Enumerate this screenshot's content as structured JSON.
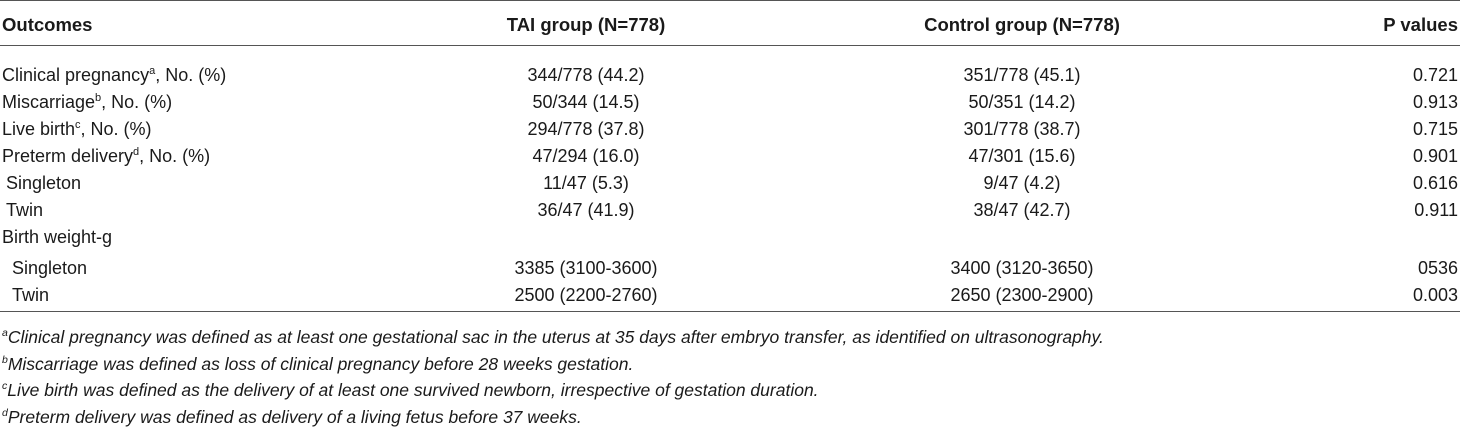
{
  "table": {
    "headers": {
      "outcomes": "Outcomes",
      "tai": "TAI group (N=778)",
      "control": "Control group (N=778)",
      "p": "P values"
    },
    "rows": [
      {
        "label": "Clinical pregnancy",
        "sup": "a",
        "suffix": ", No. (%)",
        "tai": "344/778 (44.2)",
        "control": "351/778 (45.1)",
        "p": "0.721"
      },
      {
        "label": "Miscarriage",
        "sup": "b",
        "suffix": ", No. (%)",
        "tai": "50/344 (14.5)",
        "control": "50/351 (14.2)",
        "p": "0.913"
      },
      {
        "label": "Live birth",
        "sup": "c",
        "suffix": ", No. (%)",
        "tai": "294/778 (37.8)",
        "control": "301/778 (38.7)",
        "p": "0.715"
      },
      {
        "label": "Preterm delivery",
        "sup": "d",
        "suffix": ", No. (%)",
        "tai": "47/294 (16.0)",
        "control": "47/301 (15.6)",
        "p": "0.901"
      },
      {
        "label": "Singleton",
        "sup": "",
        "suffix": "",
        "tai": "11/47 (5.3)",
        "control": "9/47 (4.2)",
        "p": "0.616"
      },
      {
        "label": "Twin",
        "sup": "",
        "suffix": "",
        "tai": "36/47 (41.9)",
        "control": "38/47 (42.7)",
        "p": "0.911"
      },
      {
        "label": "Birth weight-g",
        "sup": "",
        "suffix": "",
        "tai": "",
        "control": "",
        "p": ""
      },
      {
        "label": "Singleton",
        "sup": "",
        "suffix": "",
        "tai": "3385 (3100-3600)",
        "control": "3400 (3120-3650)",
        "p": "0536"
      },
      {
        "label": "Twin",
        "sup": "",
        "suffix": "",
        "tai": "2500 (2200-2760)",
        "control": "2650 (2300-2900)",
        "p": "0.003"
      }
    ]
  },
  "footnotes": [
    {
      "sup": "a",
      "text": "Clinical pregnancy was defined as at least one gestational sac in the uterus at 35 days after embryo transfer, as identified on ultrasonography."
    },
    {
      "sup": "b",
      "text": "Miscarriage was defined as loss of clinical pregnancy before 28 weeks gestation."
    },
    {
      "sup": "c",
      "text": "Live birth was defined as the delivery of at least one survived newborn, irrespective of gestation duration."
    },
    {
      "sup": "d",
      "text": "Preterm delivery was defined as delivery of a living fetus before 37 weeks."
    }
  ]
}
